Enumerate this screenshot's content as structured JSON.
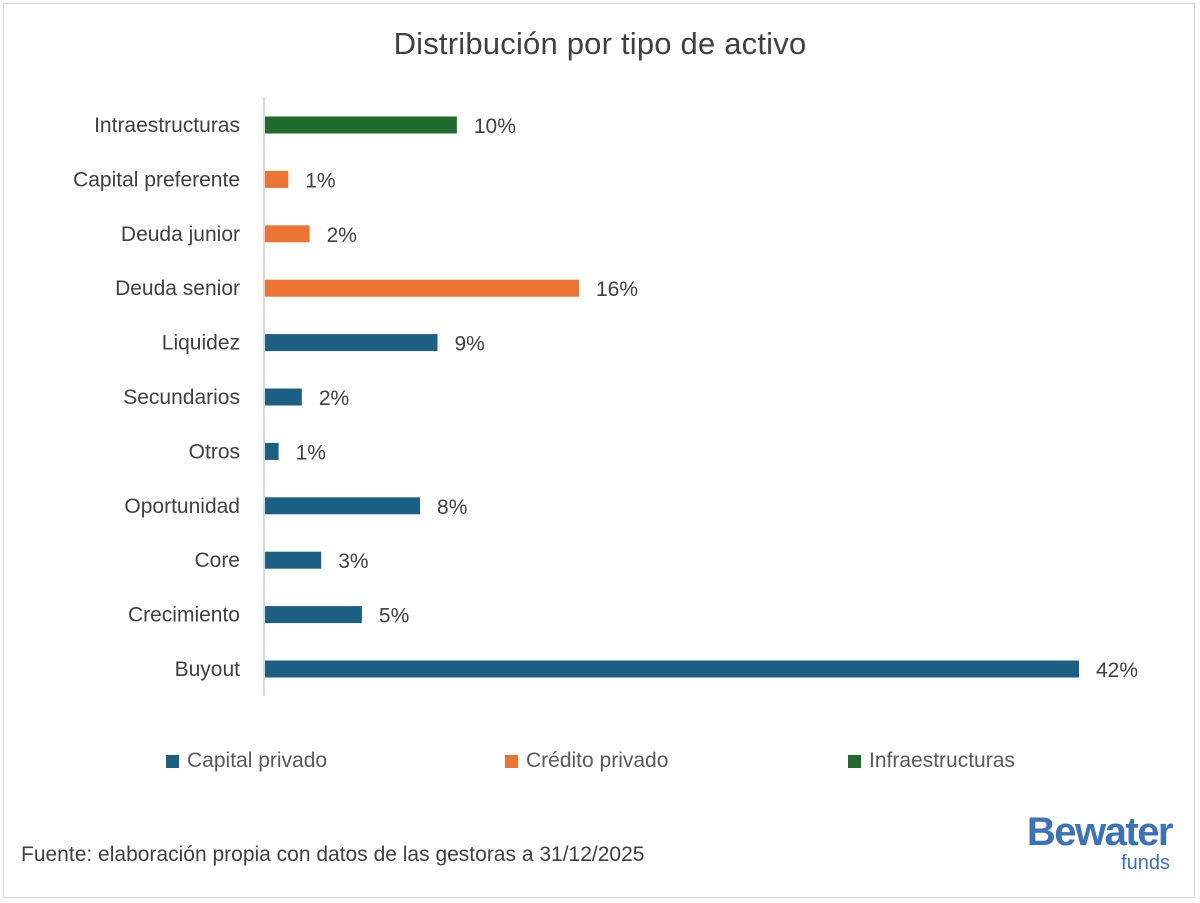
{
  "chart_data": {
    "type": "bar",
    "orientation": "horizontal",
    "title": "Distribución por tipo de activo",
    "xlabel": "",
    "ylabel": "",
    "xlim": [
      0,
      42
    ],
    "grid": false,
    "legend_position": "bottom",
    "categories": [
      "Intraestructuras",
      "Capital preferente",
      "Deuda junior",
      "Deuda senior",
      "Liquidez",
      "Secundarios",
      "Otros",
      "Oportunidad",
      "Core",
      "Crecimiento",
      "Buyout"
    ],
    "values": [
      9.9,
      1.2,
      2.3,
      16.2,
      8.9,
      1.9,
      0.7,
      8.0,
      2.9,
      5.0,
      42.0
    ],
    "value_labels": [
      "10%",
      "1%",
      "2%",
      "16%",
      "9%",
      "2%",
      "1%",
      "8%",
      "3%",
      "5%",
      "42%"
    ],
    "groups": [
      "Infraestructuras",
      "Crédito privado",
      "Crédito privado",
      "Crédito privado",
      "Capital privado",
      "Capital privado",
      "Capital privado",
      "Capital privado",
      "Capital privado",
      "Capital privado",
      "Capital privado"
    ],
    "series": [
      {
        "name": "Capital privado",
        "color": "#1b5f82"
      },
      {
        "name": "Crédito privado",
        "color": "#ec7433"
      },
      {
        "name": "Infraestructuras",
        "color": "#1f6b2b"
      }
    ]
  },
  "footer": {
    "source": "Fuente: elaboración propia con datos de las gestoras a 31/12/2025"
  },
  "logo": {
    "main": "Bewater",
    "sub": "funds",
    "color": "#3a73b8"
  }
}
